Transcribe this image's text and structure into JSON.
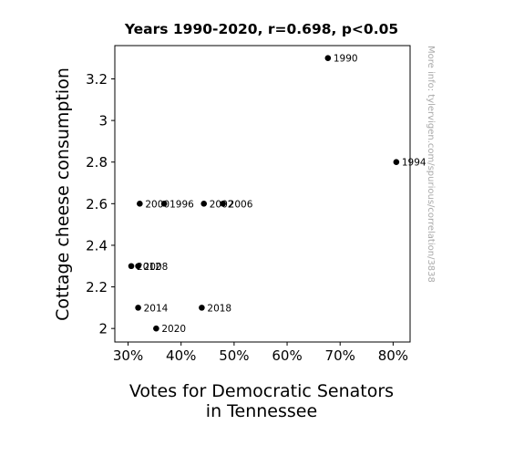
{
  "chart_data": {
    "type": "scatter",
    "title": "Years 1990-2020, r=0.698, p<0.05",
    "xlabel_lines": [
      "Votes for Democratic Senators",
      "in Tennessee"
    ],
    "ylabel": "Cottage cheese consumption",
    "side_note": "More info: tylervigen.com/spurious/correlation/3838",
    "xlim": [
      27.5,
      83.2
    ],
    "ylim": [
      1.935,
      3.36
    ],
    "x_ticks": [
      30,
      40,
      50,
      60,
      70,
      80
    ],
    "x_tick_labels": [
      "30%",
      "40%",
      "50%",
      "60%",
      "70%",
      "80%"
    ],
    "y_ticks": [
      2.0,
      2.2,
      2.4,
      2.6,
      2.8,
      3.0,
      3.2
    ],
    "y_tick_labels": [
      "2",
      "2.2",
      "2.4",
      "2.6",
      "2.8",
      "3",
      "3.2"
    ],
    "grid": false,
    "legend": "none",
    "marker_color": "#000000",
    "points": [
      {
        "label": "1990",
        "x": 67.7,
        "y": 3.3
      },
      {
        "label": "1994",
        "x": 80.6,
        "y": 2.8
      },
      {
        "label": "1996",
        "x": 36.8,
        "y": 2.6
      },
      {
        "label": "2000",
        "x": 32.2,
        "y": 2.6
      },
      {
        "label": "2002",
        "x": 44.3,
        "y": 2.6
      },
      {
        "label": "2006",
        "x": 47.9,
        "y": 2.6
      },
      {
        "label": "2008",
        "x": 31.9,
        "y": 2.3
      },
      {
        "label": "2012",
        "x": 30.6,
        "y": 2.3
      },
      {
        "label": "2014",
        "x": 31.9,
        "y": 2.1
      },
      {
        "label": "2018",
        "x": 43.9,
        "y": 2.1
      },
      {
        "label": "2020",
        "x": 35.3,
        "y": 2.0
      }
    ]
  }
}
